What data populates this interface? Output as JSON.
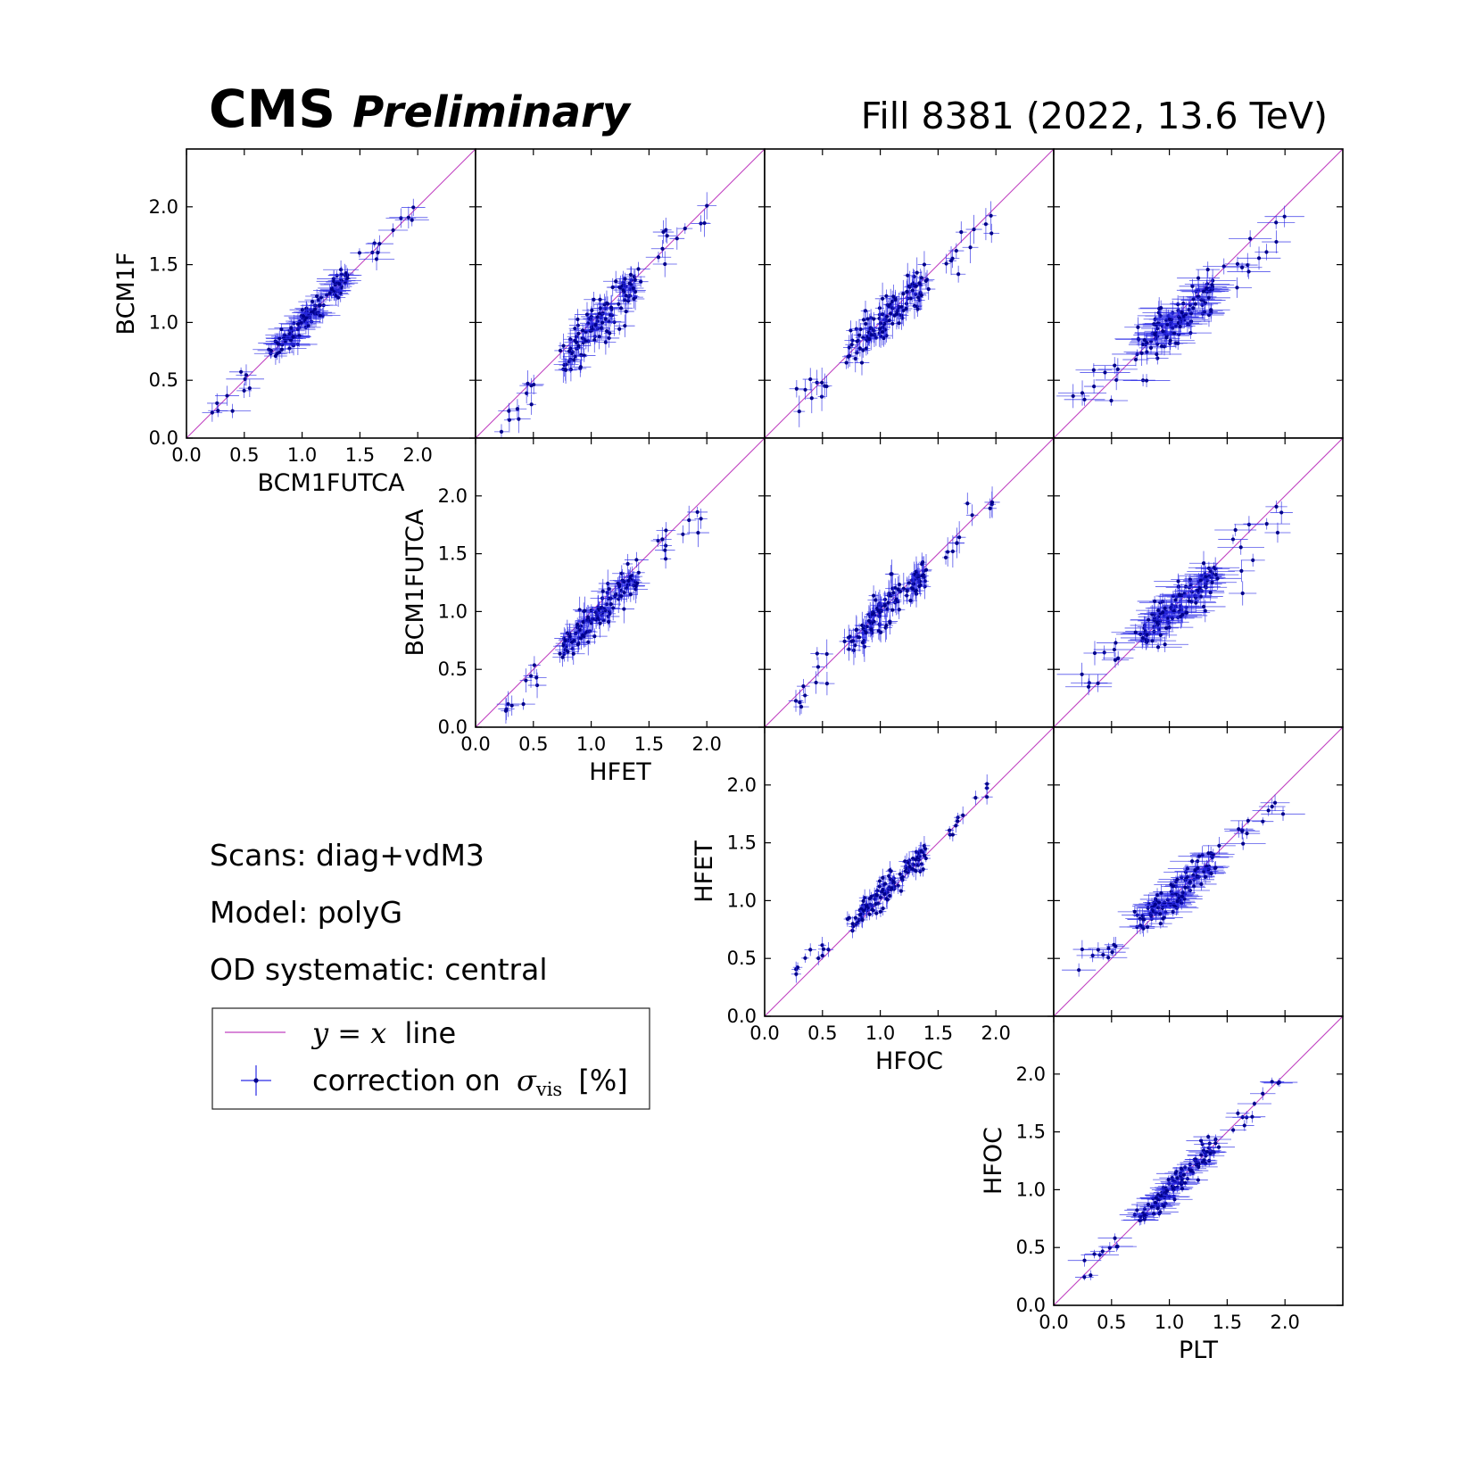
{
  "header": {
    "experiment": "CMS",
    "status": "Preliminary",
    "fill_info": "Fill 8381 (2022, 13.6 TeV)"
  },
  "info": {
    "scans": "Scans: diag+vdM3",
    "model": "Model: polyG",
    "od": "OD systematic: central"
  },
  "legend": {
    "yx_math": "y = x",
    "yx_text": "line",
    "corr_text": "correction on",
    "corr_symbol": "σ",
    "corr_sub": "vis",
    "corr_unit": "[%]"
  },
  "colors": {
    "points": "#00008b",
    "errorbars": "#2a2ae6",
    "diagonal": "#c040c0"
  },
  "chart_data": {
    "type": "scatter",
    "layout": "upper-triangular pair matrix, 4 rows x 4 columns",
    "xlim": [
      0.0,
      2.5
    ],
    "ylim": [
      0.0,
      2.5
    ],
    "ticks": [
      0.0,
      0.5,
      1.0,
      1.5,
      2.0
    ],
    "tick_labels": [
      "0.0",
      "0.5",
      "1.0",
      "1.5",
      "2.0"
    ],
    "row_labels": [
      "BCM1F",
      "BCM1FUTCA",
      "HFET",
      "HFOC"
    ],
    "col_labels": [
      "BCM1FUTCA",
      "HFET",
      "HFOC",
      "PLT"
    ],
    "reference_line": "y = x",
    "points_per_panel": 140,
    "panels": [
      {
        "row": 0,
        "col": 0,
        "x": "BCM1FUTCA",
        "y": "BCM1F",
        "y_shift": 0.0,
        "slope": 1.0,
        "spread": 0.05,
        "xerr": 0.12,
        "yerr": 0.07
      },
      {
        "row": 0,
        "col": 1,
        "x": "HFET",
        "y": "BCM1F",
        "y_shift": -0.12,
        "slope": 1.05,
        "spread": 0.09,
        "xerr": 0.08,
        "yerr": 0.09
      },
      {
        "row": 0,
        "col": 2,
        "x": "HFOC",
        "y": "BCM1F",
        "y_shift": 0.04,
        "slope": 0.95,
        "spread": 0.09,
        "xerr": 0.05,
        "yerr": 0.1
      },
      {
        "row": 0,
        "col": 3,
        "x": "PLT",
        "y": "BCM1F",
        "y_shift": 0.12,
        "slope": 0.85,
        "spread": 0.1,
        "xerr": 0.16,
        "yerr": 0.08
      },
      {
        "row": 1,
        "col": 1,
        "x": "HFET",
        "y": "BCM1FUTCA",
        "y_shift": -0.1,
        "slope": 1.02,
        "spread": 0.08,
        "xerr": 0.08,
        "yerr": 0.09
      },
      {
        "row": 1,
        "col": 2,
        "x": "HFOC",
        "y": "BCM1FUTCA",
        "y_shift": 0.04,
        "slope": 0.95,
        "spread": 0.08,
        "xerr": 0.05,
        "yerr": 0.1
      },
      {
        "row": 1,
        "col": 3,
        "x": "PLT",
        "y": "BCM1FUTCA",
        "y_shift": 0.14,
        "slope": 0.84,
        "spread": 0.1,
        "xerr": 0.16,
        "yerr": 0.08
      },
      {
        "row": 2,
        "col": 2,
        "x": "HFOC",
        "y": "HFET",
        "y_shift": 0.12,
        "slope": 0.93,
        "spread": 0.05,
        "xerr": 0.04,
        "yerr": 0.06
      },
      {
        "row": 2,
        "col": 3,
        "x": "PLT",
        "y": "HFET",
        "y_shift": 0.2,
        "slope": 0.82,
        "spread": 0.08,
        "xerr": 0.14,
        "yerr": 0.06
      },
      {
        "row": 3,
        "col": 3,
        "x": "PLT",
        "y": "HFOC",
        "y_shift": 0.03,
        "slope": 0.97,
        "spread": 0.05,
        "xerr": 0.12,
        "yerr": 0.04
      }
    ]
  }
}
